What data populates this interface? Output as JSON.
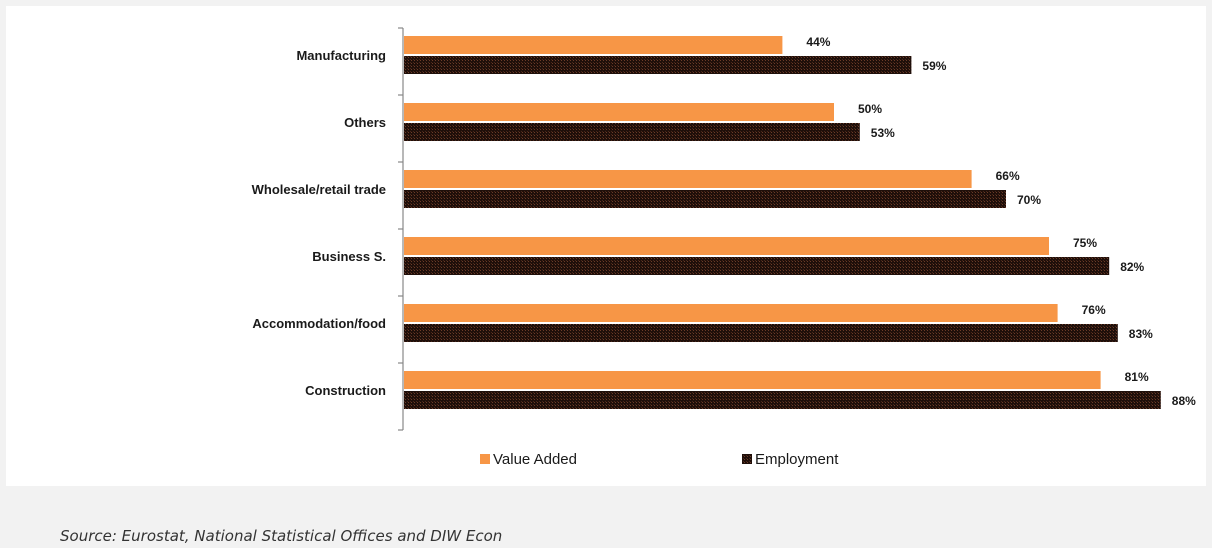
{
  "chart_data": {
    "type": "bar",
    "orientation": "horizontal",
    "categories": [
      "Manufacturing",
      "Others",
      "Wholesale/retail trade",
      "Business S.",
      "Accommodation/food",
      "Construction"
    ],
    "series": [
      {
        "name": "Value Added",
        "values": [
          44,
          50,
          66,
          75,
          76,
          81
        ],
        "labels": [
          "44%",
          "50%",
          "66%",
          "75%",
          "76%",
          "81%"
        ],
        "color": "#f79646"
      },
      {
        "name": "Employment",
        "values": [
          59,
          53,
          70,
          82,
          83,
          88
        ],
        "labels": [
          "59%",
          "53%",
          "70%",
          "82%",
          "83%",
          "88%"
        ],
        "color": "#1f0f0a"
      }
    ],
    "xlim": [
      0,
      100
    ],
    "legend_position": "bottom",
    "grid": false
  },
  "source": "Source: Eurostat, National Statistical Offices and DIW Econ"
}
